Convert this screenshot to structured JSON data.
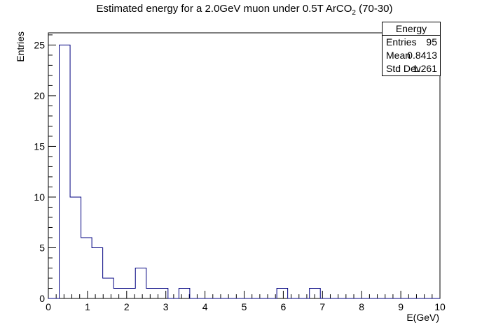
{
  "chart_data": {
    "type": "histogram",
    "title_main": "Estimated energy for a 2.0GeV muon under 0.5T ArCO",
    "title_sub": "2",
    "title_tail": " (70-30)",
    "xlabel": "E(GeV)",
    "ylabel": "Entries",
    "xlim": [
      0,
      10
    ],
    "ylim": [
      0,
      26.2
    ],
    "bin_width": 0.2778,
    "bins": [
      {
        "x0": 0.2778,
        "x1": 0.5556,
        "value": 25
      },
      {
        "x0": 0.5556,
        "x1": 0.8333,
        "value": 10
      },
      {
        "x0": 0.8333,
        "x1": 1.1111,
        "value": 6
      },
      {
        "x0": 1.1111,
        "x1": 1.3889,
        "value": 5
      },
      {
        "x0": 1.3889,
        "x1": 1.6667,
        "value": 2
      },
      {
        "x0": 1.6667,
        "x1": 1.9444,
        "value": 1
      },
      {
        "x0": 1.9444,
        "x1": 2.2222,
        "value": 1
      },
      {
        "x0": 2.2222,
        "x1": 2.5,
        "value": 3
      },
      {
        "x0": 2.5,
        "x1": 2.7778,
        "value": 1
      },
      {
        "x0": 2.7778,
        "x1": 3.0556,
        "value": 1
      },
      {
        "x0": 3.3333,
        "x1": 3.6111,
        "value": 1
      },
      {
        "x0": 5.8333,
        "x1": 6.1111,
        "value": 1
      },
      {
        "x0": 6.6667,
        "x1": 6.9444,
        "value": 1
      }
    ],
    "x_ticks": [
      "0",
      "1",
      "2",
      "3",
      "4",
      "5",
      "6",
      "7",
      "8",
      "9",
      "10"
    ],
    "y_ticks": [
      "0",
      "5",
      "10",
      "15",
      "20",
      "25"
    ],
    "line_color": "#000080",
    "stats": {
      "name": "Energy",
      "rows": [
        {
          "key": "Entries",
          "value": "95"
        },
        {
          "key": "Mean",
          "value": "0.8413"
        },
        {
          "key": "Std Dev",
          "value": "1.261"
        }
      ]
    }
  }
}
